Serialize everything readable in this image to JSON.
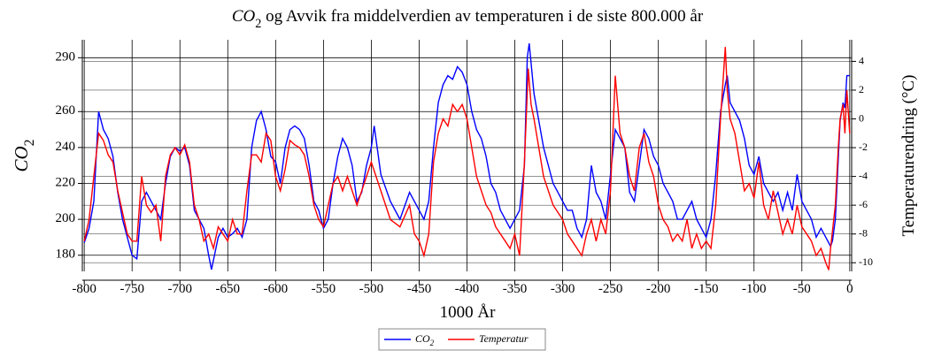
{
  "chart_data": {
    "type": "line",
    "title": "CO2 og Avvik fra middelverdien av temperaturen i de siste 800.000 år",
    "xlabel": "1000 År",
    "ylabel": "CO2",
    "y2label": "Temperaturendring (°C)",
    "xlim": [
      -802,
      2
    ],
    "xticks": [
      -800,
      -750,
      -700,
      -650,
      -600,
      -550,
      -500,
      -450,
      -400,
      -350,
      -300,
      -250,
      -200,
      -150,
      -100,
      -50,
      0
    ],
    "ylim": [
      171,
      300
    ],
    "yticks": [
      180,
      200,
      220,
      240,
      260,
      290
    ],
    "y2lim": [
      -10.6,
      5.5
    ],
    "y2ticks": [
      -10,
      -8,
      -6,
      -4,
      -2,
      0,
      2,
      4
    ],
    "grid": true,
    "legend": "bottom",
    "series": [
      {
        "name": "CO2",
        "color": "#0000ff",
        "x": [
          -800,
          -795,
          -790,
          -785,
          -780,
          -775,
          -770,
          -765,
          -760,
          -755,
          -750,
          -745,
          -740,
          -735,
          -730,
          -725,
          -720,
          -715,
          -710,
          -705,
          -700,
          -695,
          -690,
          -685,
          -680,
          -675,
          -670,
          -667,
          -660,
          -655,
          -650,
          -645,
          -640,
          -635,
          -630,
          -625,
          -620,
          -615,
          -610,
          -605,
          -600,
          -595,
          -590,
          -585,
          -580,
          -575,
          -570,
          -565,
          -560,
          -555,
          -550,
          -545,
          -540,
          -535,
          -530,
          -525,
          -520,
          -515,
          -510,
          -505,
          -500,
          -497,
          -490,
          -480,
          -470,
          -460,
          -455,
          -450,
          -445,
          -440,
          -435,
          -430,
          -425,
          -420,
          -415,
          -410,
          -405,
          -400,
          -395,
          -390,
          -385,
          -380,
          -375,
          -370,
          -365,
          -360,
          -355,
          -350,
          -345,
          -340,
          -337,
          -335,
          -330,
          -325,
          -320,
          -315,
          -310,
          -305,
          -300,
          -295,
          -290,
          -285,
          -280,
          -275,
          -270,
          -265,
          -260,
          -255,
          -250,
          -245,
          -240,
          -235,
          -230,
          -225,
          -220,
          -215,
          -210,
          -205,
          -200,
          -195,
          -190,
          -185,
          -180,
          -175,
          -170,
          -165,
          -160,
          -155,
          -150,
          -145,
          -140,
          -135,
          -130,
          -128,
          -125,
          -120,
          -115,
          -110,
          -105,
          -100,
          -95,
          -90,
          -85,
          -80,
          -75,
          -70,
          -65,
          -60,
          -55,
          -50,
          -45,
          -40,
          -35,
          -30,
          -25,
          -20,
          -18,
          -15,
          -10,
          -7,
          -5,
          -3,
          0
        ],
        "values": [
          187,
          195,
          210,
          260,
          250,
          245,
          235,
          215,
          200,
          190,
          180,
          178,
          210,
          215,
          210,
          205,
          200,
          220,
          235,
          240,
          238,
          240,
          230,
          205,
          200,
          195,
          180,
          172,
          190,
          195,
          190,
          192,
          195,
          190,
          200,
          240,
          255,
          260,
          250,
          235,
          232,
          220,
          240,
          250,
          252,
          250,
          245,
          230,
          210,
          205,
          195,
          200,
          220,
          235,
          245,
          240,
          230,
          210,
          215,
          230,
          240,
          252,
          225,
          210,
          200,
          215,
          210,
          205,
          200,
          210,
          240,
          265,
          275,
          280,
          278,
          285,
          282,
          275,
          260,
          250,
          245,
          235,
          220,
          215,
          205,
          200,
          195,
          200,
          205,
          230,
          290,
          298,
          270,
          255,
          240,
          230,
          220,
          215,
          210,
          205,
          205,
          195,
          190,
          200,
          230,
          215,
          210,
          200,
          225,
          250,
          245,
          240,
          215,
          210,
          230,
          250,
          245,
          235,
          230,
          220,
          215,
          210,
          200,
          200,
          205,
          210,
          200,
          195,
          190,
          200,
          225,
          260,
          275,
          280,
          265,
          260,
          255,
          245,
          230,
          225,
          235,
          220,
          215,
          210,
          215,
          205,
          215,
          205,
          225,
          210,
          205,
          200,
          190,
          195,
          190,
          185,
          188,
          200,
          255,
          265,
          262,
          280,
          280
        ]
      },
      {
        "name": "Temperatur",
        "color": "#ff0000",
        "axis": "y2",
        "x": [
          -800,
          -795,
          -790,
          -785,
          -780,
          -775,
          -770,
          -765,
          -760,
          -755,
          -750,
          -745,
          -740,
          -735,
          -730,
          -725,
          -720,
          -715,
          -710,
          -705,
          -700,
          -695,
          -690,
          -685,
          -680,
          -675,
          -670,
          -665,
          -660,
          -655,
          -650,
          -645,
          -640,
          -635,
          -630,
          -625,
          -620,
          -615,
          -610,
          -605,
          -600,
          -595,
          -590,
          -585,
          -580,
          -575,
          -570,
          -565,
          -560,
          -555,
          -550,
          -545,
          -540,
          -535,
          -530,
          -525,
          -520,
          -515,
          -510,
          -505,
          -500,
          -495,
          -490,
          -480,
          -470,
          -460,
          -455,
          -450,
          -445,
          -440,
          -435,
          -430,
          -425,
          -420,
          -415,
          -410,
          -405,
          -400,
          -395,
          -390,
          -385,
          -380,
          -375,
          -370,
          -365,
          -360,
          -355,
          -350,
          -345,
          -340,
          -336,
          -333,
          -330,
          -325,
          -320,
          -315,
          -310,
          -305,
          -300,
          -295,
          -290,
          -285,
          -280,
          -275,
          -270,
          -265,
          -260,
          -255,
          -250,
          -245,
          -240,
          -235,
          -230,
          -225,
          -220,
          -215,
          -210,
          -205,
          -200,
          -195,
          -190,
          -185,
          -180,
          -175,
          -170,
          -165,
          -160,
          -155,
          -150,
          -145,
          -140,
          -135,
          -130,
          -128,
          -125,
          -120,
          -115,
          -110,
          -105,
          -100,
          -95,
          -90,
          -85,
          -80,
          -75,
          -70,
          -65,
          -60,
          -55,
          -50,
          -45,
          -40,
          -35,
          -30,
          -25,
          -22,
          -20,
          -15,
          -12,
          -10,
          -7,
          -5,
          -3,
          0
        ],
        "values": [
          -8.5,
          -7,
          -4,
          -1,
          -1.5,
          -2.5,
          -3,
          -5,
          -6.5,
          -8,
          -8.5,
          -8.5,
          -4,
          -6,
          -6.5,
          -6,
          -8.5,
          -4,
          -2.5,
          -2,
          -2.5,
          -1.8,
          -3,
          -6,
          -7,
          -8.5,
          -8,
          -9,
          -7.5,
          -8,
          -8.5,
          -7,
          -8,
          -8,
          -5,
          -2.5,
          -2.5,
          -3,
          -1,
          -1.5,
          -4,
          -5,
          -3.5,
          -1.5,
          -1.8,
          -2,
          -2.5,
          -4,
          -6,
          -7,
          -7.5,
          -6,
          -4.5,
          -4,
          -5,
          -4,
          -5,
          -6,
          -5,
          -4,
          -3,
          -4,
          -5,
          -7,
          -7.5,
          -6,
          -8,
          -8.5,
          -9.5,
          -8,
          -3,
          -1,
          0,
          -0.5,
          1,
          0.5,
          1,
          0,
          -2,
          -4,
          -5,
          -6,
          -6.5,
          -7.5,
          -8,
          -8.5,
          -9,
          -8,
          -9.5,
          -3,
          3.5,
          1,
          0,
          -2,
          -4,
          -5,
          -6,
          -6.5,
          -7,
          -8,
          -8.5,
          -9,
          -9.5,
          -8,
          -7,
          -8.5,
          -7,
          -8,
          -5,
          3,
          -1,
          -2,
          -4,
          -5,
          -2,
          -1,
          -3,
          -4,
          -6,
          -7,
          -7.5,
          -8.5,
          -8,
          -8.5,
          -7,
          -9,
          -8,
          -9,
          -8.5,
          -9,
          -6,
          0,
          5,
          2,
          0,
          -1,
          -3,
          -5,
          -4.5,
          -5.5,
          -3,
          -6,
          -7,
          -5,
          -6.5,
          -8,
          -7,
          -8,
          -6,
          -7.5,
          -8,
          -8.5,
          -9.5,
          -9,
          -10,
          -10.5,
          -9,
          -6,
          -2,
          0,
          1,
          -1,
          2,
          -1
        ]
      }
    ]
  }
}
